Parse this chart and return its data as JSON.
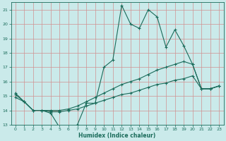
{
  "xlabel": "Humidex (Indice chaleur)",
  "xlim": [
    -0.5,
    23.5
  ],
  "ylim": [
    13,
    21.5
  ],
  "yticks": [
    13,
    14,
    15,
    16,
    17,
    18,
    19,
    20,
    21
  ],
  "xticks": [
    0,
    1,
    2,
    3,
    4,
    5,
    6,
    7,
    8,
    9,
    10,
    11,
    12,
    13,
    14,
    15,
    16,
    17,
    18,
    19,
    20,
    21,
    22,
    23
  ],
  "bg_color": "#caeaea",
  "grid_color": "#d09090",
  "line_color": "#1a6b5a",
  "line1_x": [
    0,
    1,
    2,
    3,
    4,
    5,
    6,
    7,
    8,
    9,
    10,
    11,
    12,
    13,
    14,
    15,
    16,
    17,
    18,
    19,
    20,
    21,
    22,
    23
  ],
  "line1_y": [
    15.2,
    14.6,
    14.0,
    14.0,
    13.8,
    12.8,
    12.8,
    13.0,
    14.5,
    14.5,
    17.0,
    17.5,
    21.3,
    20.0,
    19.7,
    21.0,
    20.5,
    18.4,
    19.6,
    18.5,
    17.2,
    15.5,
    15.5,
    15.7
  ],
  "line2_x": [
    0,
    1,
    2,
    3,
    4,
    5,
    6,
    7,
    8,
    9,
    10,
    11,
    12,
    13,
    14,
    15,
    16,
    17,
    18,
    19,
    20,
    21,
    22,
    23
  ],
  "line2_y": [
    15.1,
    14.6,
    14.0,
    14.0,
    14.0,
    14.0,
    14.1,
    14.3,
    14.6,
    14.9,
    15.2,
    15.5,
    15.8,
    16.0,
    16.2,
    16.5,
    16.8,
    17.0,
    17.2,
    17.4,
    17.2,
    15.5,
    15.5,
    15.7
  ],
  "line3_x": [
    0,
    1,
    2,
    3,
    4,
    5,
    6,
    7,
    8,
    9,
    10,
    11,
    12,
    13,
    14,
    15,
    16,
    17,
    18,
    19,
    20,
    21,
    22,
    23
  ],
  "line3_y": [
    14.9,
    14.6,
    14.0,
    14.0,
    13.9,
    13.9,
    14.0,
    14.1,
    14.3,
    14.5,
    14.7,
    14.9,
    15.1,
    15.2,
    15.4,
    15.6,
    15.8,
    15.9,
    16.1,
    16.2,
    16.4,
    15.5,
    15.5,
    15.7
  ]
}
